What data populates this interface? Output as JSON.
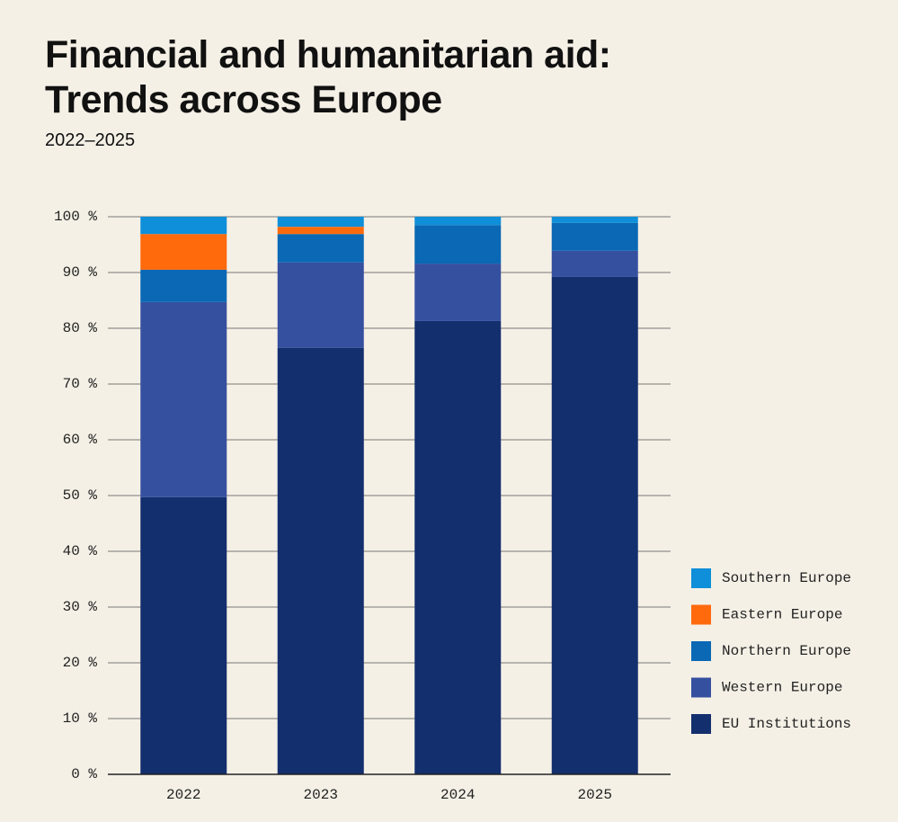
{
  "chart_data": {
    "type": "stacked_bar",
    "title": "Financial and humanitarian aid: Trends across Europe",
    "subtitle": "2022–2025",
    "categories": [
      "2022",
      "2023",
      "2024",
      "2025"
    ],
    "series": [
      {
        "name": "EU Institutions",
        "color": "#142f6e",
        "values": [
          49.7,
          76.5,
          81.3,
          89.2
        ]
      },
      {
        "name": "Western Europe",
        "color": "#3650a0",
        "values": [
          35.0,
          15.3,
          10.3,
          4.7
        ]
      },
      {
        "name": "Northern Europe",
        "color": "#0a68b4",
        "values": [
          5.8,
          5.1,
          6.9,
          5.0
        ]
      },
      {
        "name": "Eastern Europe",
        "color": "#ff6a0d",
        "values": [
          6.4,
          1.3,
          0,
          0
        ]
      },
      {
        "name": "Southern Europe",
        "color": "#0f8fd9",
        "values": [
          3.1,
          1.8,
          1.5,
          1.1
        ]
      }
    ],
    "ylim": [
      0,
      100
    ],
    "yticks": [
      {
        "value": 0,
        "label": "0 %"
      },
      {
        "value": 10,
        "label": "10 %"
      },
      {
        "value": 20,
        "label": "20 %"
      },
      {
        "value": 30,
        "label": "30 %"
      },
      {
        "value": 40,
        "label": "40 %"
      },
      {
        "value": 50,
        "label": "50 %"
      },
      {
        "value": 60,
        "label": "60 %"
      },
      {
        "value": 70,
        "label": "70 %"
      },
      {
        "value": 80,
        "label": "80 %"
      },
      {
        "value": 90,
        "label": "90 %"
      },
      {
        "value": 100,
        "label": "100 %"
      }
    ],
    "grid": true
  }
}
